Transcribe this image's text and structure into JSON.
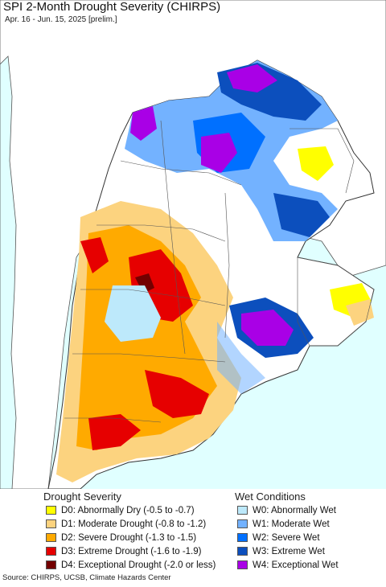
{
  "header": {
    "title": "SPI 2-Month Drought Severity (CHIRPS)",
    "subtitle": "Apr. 16 - Jun. 15, 2025 [prelim.]"
  },
  "legend": {
    "drought_title": "Drought Severity",
    "wet_title": "Wet Conditions",
    "drought_items": [
      {
        "label": "D0: Abnormally Dry (-0.5 to -0.7)",
        "color": "#ffff00"
      },
      {
        "label": "D1: Moderate Drought (-0.8 to -1.2)",
        "color": "#fcd37f"
      },
      {
        "label": "D2: Severe Drought (-1.3 to -1.5)",
        "color": "#ffaa00"
      },
      {
        "label": "D3: Extreme Drought (-1.6 to -1.9)",
        "color": "#e60000"
      },
      {
        "label": "D4: Exceptional Drought (-2.0 or less)",
        "color": "#730000"
      }
    ],
    "wet_items": [
      {
        "label": "W0: Abnormally Wet",
        "color": "#bde9fb"
      },
      {
        "label": "W1: Moderate Wet",
        "color": "#73b2ff"
      },
      {
        "label": "W2: Severe Wet",
        "color": "#0070ff"
      },
      {
        "label": "W3: Extreme Wet",
        "color": "#0c4fbd"
      },
      {
        "label": "W4: Exceptional Wet",
        "color": "#a900e6"
      }
    ]
  },
  "footer": {
    "source": "Source: CHIRPS, UCSB, Climate Hazards Center"
  }
}
